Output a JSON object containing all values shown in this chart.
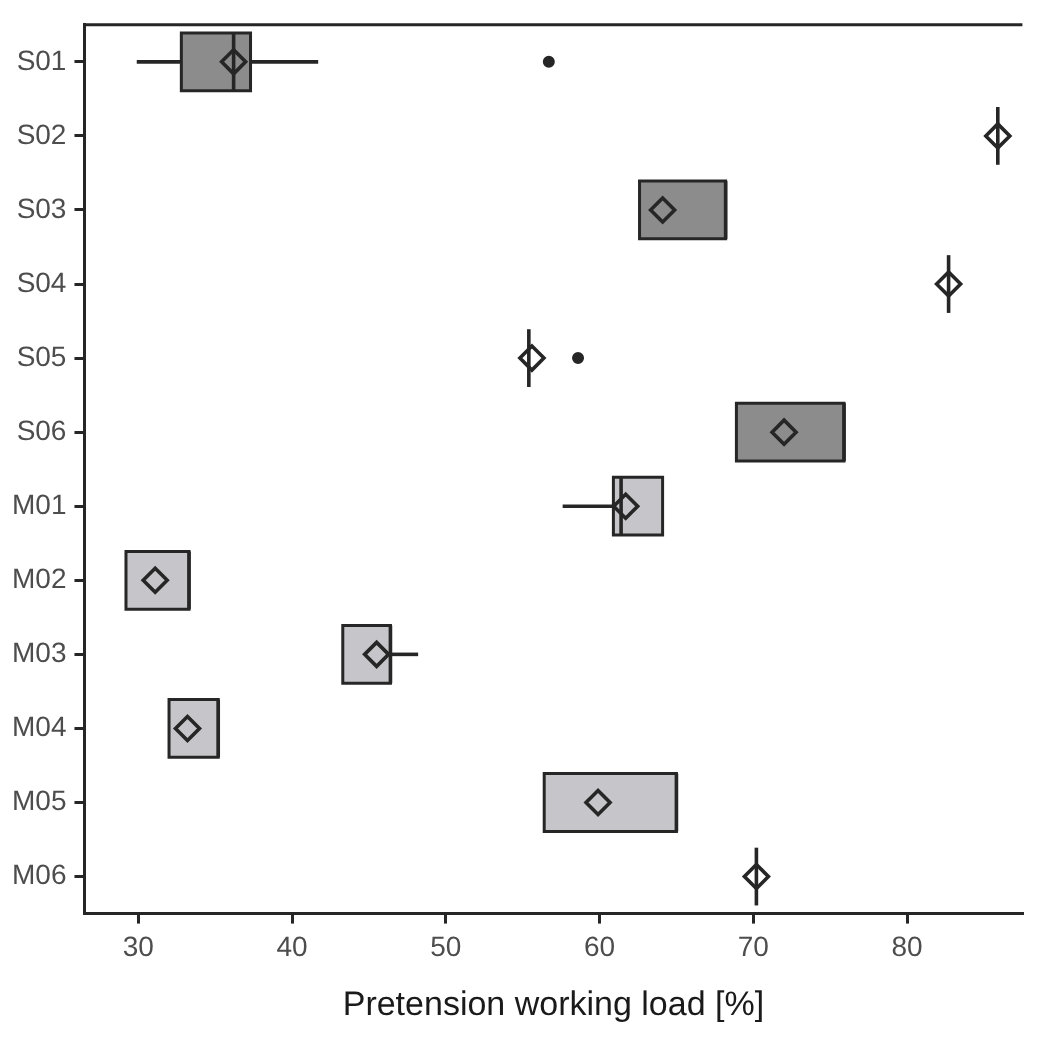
{
  "chart_data": {
    "type": "box",
    "orientation": "horizontal",
    "xlabel": "Pretension working load [%]",
    "marker": "diamond",
    "categories": [
      "S01",
      "S02",
      "S03",
      "S04",
      "S05",
      "S06",
      "M01",
      "M02",
      "M03",
      "M04",
      "M05",
      "M06"
    ],
    "colors": [
      "#8c8c8c",
      "#262626",
      "#8c8c8c",
      "#262626",
      "#262626",
      "#8c8c8c",
      "#c6c6ca",
      "#c6c6ca",
      "#c6c6ca",
      "#c6c6ca",
      "#c6c6ca",
      "#262626"
    ],
    "boxes": [
      {
        "low": 29.9,
        "q1": 32.8,
        "median": 36.2,
        "q3": 37.3,
        "high": 41.7,
        "mean": 36.2,
        "outliers": [
          56.7
        ]
      },
      {
        "low": 85.9,
        "q1": 85.9,
        "median": 85.9,
        "q3": 85.9,
        "high": 85.9,
        "mean": 85.9
      },
      {
        "low": 62.6,
        "q1": 62.6,
        "median": 68.2,
        "q3": 68.2,
        "high": 68.2,
        "mean": 64.1
      },
      {
        "low": 82.7,
        "q1": 82.7,
        "median": 82.7,
        "q3": 82.7,
        "high": 82.7,
        "mean": 82.7
      },
      {
        "low": 55.4,
        "q1": 55.4,
        "median": 55.4,
        "q3": 55.4,
        "high": 55.4,
        "mean": 55.6,
        "outliers": [
          58.6
        ]
      },
      {
        "low": 68.9,
        "q1": 68.9,
        "median": 75.9,
        "q3": 75.9,
        "high": 75.9,
        "mean": 72.0
      },
      {
        "low": 57.6,
        "q1": 60.9,
        "median": 61.4,
        "q3": 64.1,
        "high": 64.1,
        "mean": 61.7
      },
      {
        "low": 29.2,
        "q1": 29.2,
        "median": 33.3,
        "q3": 33.3,
        "high": 33.3,
        "mean": 31.1
      },
      {
        "low": 43.3,
        "q1": 43.3,
        "median": 46.4,
        "q3": 46.4,
        "high": 48.2,
        "mean": 45.5
      },
      {
        "low": 32.0,
        "q1": 32.0,
        "median": 35.2,
        "q3": 35.2,
        "high": 35.2,
        "mean": 33.2
      },
      {
        "low": 56.4,
        "q1": 56.4,
        "median": 65.0,
        "q3": 65.0,
        "high": 65.0,
        "mean": 59.9
      },
      {
        "low": 70.2,
        "q1": 70.2,
        "median": 70.2,
        "q3": 70.2,
        "high": 70.2,
        "mean": 70.2
      }
    ],
    "xlim": [
      26.5,
      87.5
    ],
    "xticks": [
      30,
      40,
      50,
      60,
      70,
      80
    ]
  }
}
